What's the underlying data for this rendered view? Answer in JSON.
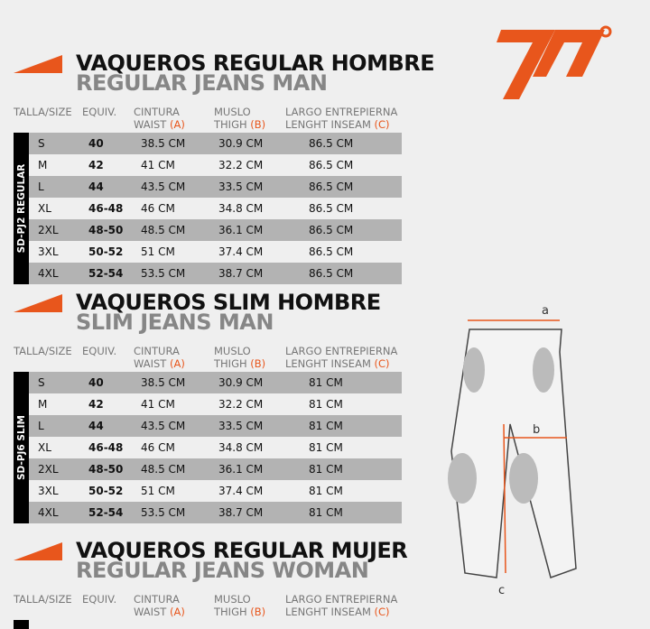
{
  "brand": {
    "logo_text": "70°",
    "accent": "#e8561c"
  },
  "headers": {
    "size": "TALLA/SIZE",
    "equiv": "EQUIV.",
    "waist1": "CINTURA",
    "waist2": "WAIST",
    "waist_mark": "(A)",
    "thigh1": "MUSLO",
    "thigh2": "THIGH",
    "thigh_mark": "(B)",
    "inseam1": "LARGO ENTREPIERNA",
    "inseam2": "LENGHT INSEAM",
    "inseam_mark": "(C)"
  },
  "sections": [
    {
      "title": "VAQUEROS REGULAR HOMBRE",
      "subtitle": "REGULAR JEANS MAN",
      "model": "SD-PJ2 REGULAR",
      "rows": [
        [
          "S",
          "40",
          "38.5 CM",
          "30.9 CM",
          "86.5 CM"
        ],
        [
          "M",
          "42",
          "41 CM",
          "32.2 CM",
          "86.5 CM"
        ],
        [
          "L",
          "44",
          "43.5 CM",
          "33.5 CM",
          "86.5 CM"
        ],
        [
          "XL",
          "46-48",
          "46 CM",
          "34.8 CM",
          "86.5 CM"
        ],
        [
          "2XL",
          "48-50",
          "48.5 CM",
          "36.1 CM",
          "86.5 CM"
        ],
        [
          "3XL",
          "50-52",
          "51 CM",
          "37.4 CM",
          "86.5 CM"
        ],
        [
          "4XL",
          "52-54",
          "53.5 CM",
          "38.7 CM",
          "86.5 CM"
        ]
      ]
    },
    {
      "title": "VAQUEROS SLIM HOMBRE",
      "subtitle": "SLIM JEANS MAN",
      "model": "SD-PJ6 SLIM",
      "rows": [
        [
          "S",
          "40",
          "38.5 CM",
          "30.9 CM",
          "81 CM"
        ],
        [
          "M",
          "42",
          "41 CM",
          "32.2 CM",
          "81 CM"
        ],
        [
          "L",
          "44",
          "43.5 CM",
          "33.5 CM",
          "81 CM"
        ],
        [
          "XL",
          "46-48",
          "46 CM",
          "34.8 CM",
          "81 CM"
        ],
        [
          "2XL",
          "48-50",
          "48.5 CM",
          "36.1 CM",
          "81 CM"
        ],
        [
          "3XL",
          "50-52",
          "51 CM",
          "37.4 CM",
          "81 CM"
        ],
        [
          "4XL",
          "52-54",
          "53.5 CM",
          "38.7 CM",
          "81 CM"
        ]
      ]
    },
    {
      "title": "VAQUEROS REGULAR MUJER",
      "subtitle": "REGULAR JEANS WOMAN",
      "model": "",
      "rows": []
    }
  ],
  "diagram": {
    "a": "a",
    "b": "b",
    "c": "c"
  }
}
